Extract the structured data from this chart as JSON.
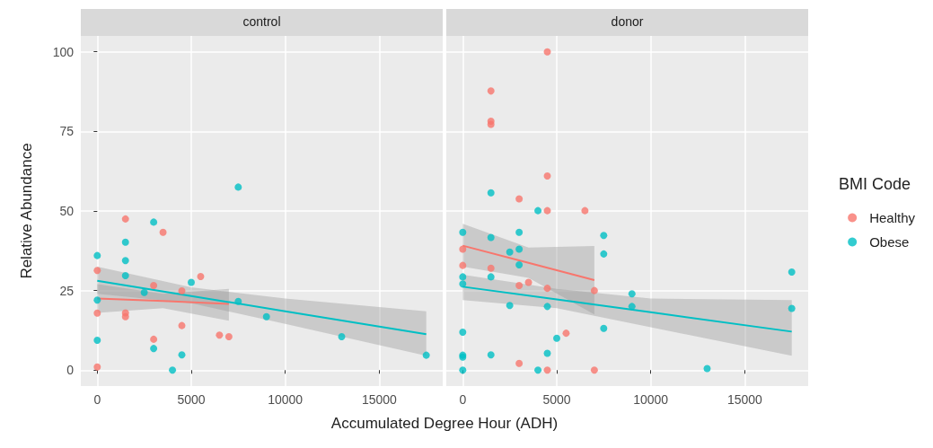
{
  "chart_data": [
    {
      "type": "scatter",
      "title": "control",
      "xlabel": "Accumulated Degree Hour (ADH)",
      "ylabel": "Relative Abundance",
      "xlim": [
        -875,
        18375
      ],
      "xticks": [
        0,
        5000,
        10000,
        15000
      ],
      "ylim": [
        -5,
        105
      ],
      "yticks": [
        0,
        25,
        50,
        75,
        100
      ],
      "grid": true,
      "marker": "circle",
      "series": [
        {
          "color": "#f8766d",
          "x": [
            0,
            0,
            0,
            1500,
            1500,
            1500,
            3000,
            3000,
            3500,
            4500,
            4500,
            5500,
            6500,
            7000
          ],
          "values": [
            31.3,
            17.9,
            1,
            47.5,
            18,
            16.8,
            26.6,
            9.7,
            43.3,
            24.9,
            14,
            29.4,
            11,
            10.5
          ]
        },
        {
          "color": "#00bfc4",
          "x": [
            0,
            0,
            0,
            1500,
            1500,
            1500,
            2500,
            3000,
            3000,
            4000,
            4500,
            5000,
            7500,
            7500,
            9000,
            13000,
            17500
          ],
          "values": [
            36,
            22,
            9.4,
            40.2,
            34.4,
            29.7,
            24.4,
            46.5,
            6.8,
            0,
            4.8,
            27.6,
            57.5,
            21.6,
            16.8,
            10.5,
            4.7
          ]
        },
        {
          "type": "line",
          "marker": "none",
          "color": "#f8766d",
          "x": [
            0,
            3500,
            7000
          ],
          "values": [
            22.5,
            21.7,
            20.8
          ],
          "lower": [
            18,
            19.5,
            15.5
          ],
          "upper": [
            27,
            24,
            25.5
          ]
        },
        {
          "type": "line",
          "marker": "none",
          "color": "#00bfc4",
          "x": [
            0,
            5000,
            10000,
            17500
          ],
          "values": [
            28.1,
            23.3,
            18.5,
            11.3
          ],
          "lower": [
            24,
            21,
            14.5,
            4.5
          ],
          "upper": [
            32.5,
            26,
            22.5,
            18.5
          ]
        }
      ]
    },
    {
      "type": "scatter",
      "title": "donor",
      "legend_title": "BMI Code",
      "legend": "right",
      "tick_labels": "x",
      "xlim": [
        -875,
        18375
      ],
      "xticks": [
        0,
        5000,
        10000,
        15000
      ],
      "ylim": [
        -5,
        105
      ],
      "yticks": [
        0,
        25,
        50,
        75,
        100
      ],
      "grid": true,
      "marker": "circle",
      "series": [
        {
          "name": "Healthy",
          "color": "#f8766d",
          "x": [
            4500,
            1500,
            1500,
            1500,
            4500,
            3000,
            4500,
            6500,
            0,
            0,
            1500,
            3000,
            3500,
            4500,
            7000,
            5500,
            3000,
            4500,
            7000
          ],
          "values": [
            100,
            87.7,
            78.2,
            77.2,
            61,
            53.8,
            50.1,
            50.1,
            38,
            32.9,
            32,
            26.6,
            27.6,
            25.7,
            25,
            11.6,
            2.1,
            0,
            0
          ]
        },
        {
          "name": "Obese",
          "color": "#00bfc4",
          "x": [
            1500,
            4000,
            0,
            1500,
            3000,
            3000,
            2500,
            7500,
            7500,
            0,
            0,
            1500,
            3000,
            4500,
            2500,
            9000,
            9000,
            17500,
            17500,
            7500,
            0,
            5000,
            0,
            0,
            1500,
            4500,
            0,
            4000,
            13000
          ],
          "values": [
            55.7,
            50.1,
            43.3,
            41.7,
            43.3,
            38,
            37.1,
            42.3,
            36.5,
            29.3,
            27.1,
            29.3,
            33.1,
            20,
            20.3,
            24,
            20,
            30.8,
            19.4,
            13.1,
            11.9,
            10,
            4.7,
            4.1,
            4.8,
            5.3,
            0,
            0,
            0.5
          ]
        },
        {
          "type": "line",
          "marker": "none",
          "color": "#f8766d",
          "x": [
            0,
            3500,
            7000
          ],
          "values": [
            39.1,
            33.7,
            28.3
          ],
          "lower": [
            32.5,
            29,
            17.5
          ],
          "upper": [
            46,
            38.5,
            39
          ]
        },
        {
          "type": "line",
          "marker": "none",
          "color": "#00bfc4",
          "x": [
            0,
            5000,
            10000,
            17500
          ],
          "values": [
            26.2,
            22.2,
            18.2,
            12.1
          ],
          "lower": [
            22,
            19.5,
            13.5,
            4.5
          ],
          "upper": [
            30,
            25.5,
            22.5,
            22
          ]
        }
      ]
    }
  ]
}
